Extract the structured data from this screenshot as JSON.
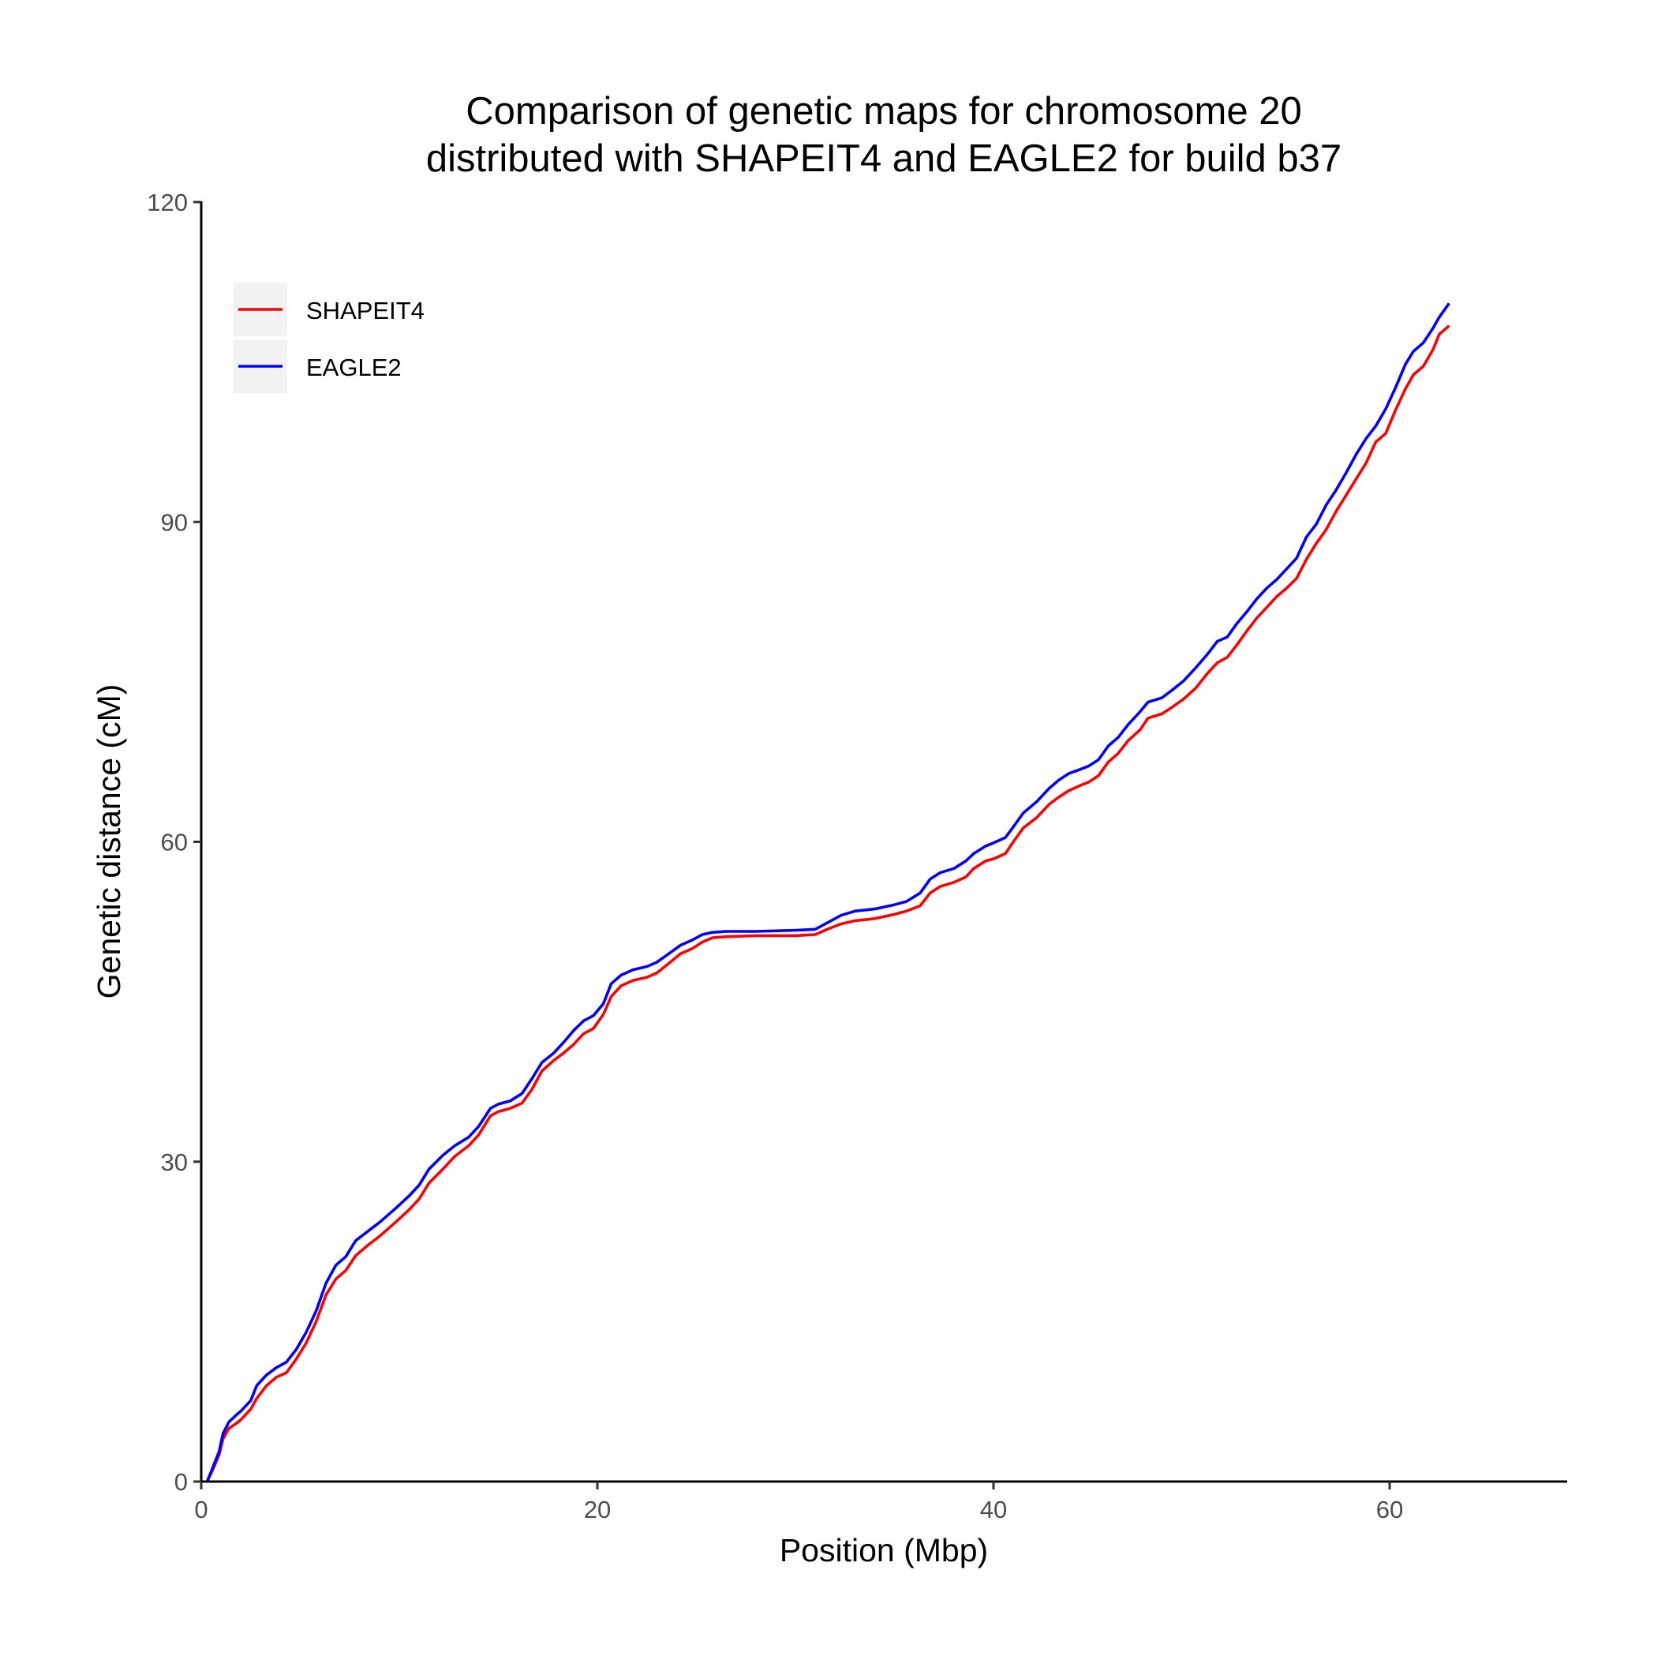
{
  "chart_data": {
    "type": "line",
    "title": "Comparison of genetic maps for chromosome 20 distributed with SHAPEIT4 and EAGLE2 for build b37",
    "title_lines": [
      "Comparison of genetic maps for chromosome 20",
      "distributed with SHAPEIT4 and EAGLE2 for build b37"
    ],
    "xlabel": "Position (Mbp)",
    "ylabel": "Genetic distance (cM)",
    "xlim": [
      0,
      70
    ],
    "ylim": [
      0,
      120
    ],
    "xticks": [
      0,
      20,
      40,
      60
    ],
    "yticks": [
      0,
      30,
      60,
      90,
      120
    ],
    "x_tick_labels": [
      "0",
      "20",
      "40",
      "60"
    ],
    "y_tick_labels": [
      "0",
      "30",
      "60",
      "90",
      "120"
    ],
    "grid": false,
    "legend_position": "top-left",
    "series": [
      {
        "name": "SHAPEIT4",
        "color": "#ff0000",
        "points": [
          [
            0.3,
            0.0
          ],
          [
            0.6,
            1.2
          ],
          [
            0.9,
            2.5
          ],
          [
            1.1,
            4.0
          ],
          [
            1.4,
            5.0
          ],
          [
            1.8,
            5.5
          ],
          [
            2.0,
            5.8
          ],
          [
            2.5,
            6.8
          ],
          [
            2.8,
            7.8
          ],
          [
            3.3,
            9.0
          ],
          [
            3.8,
            9.8
          ],
          [
            4.3,
            10.2
          ],
          [
            4.8,
            11.5
          ],
          [
            5.3,
            13.0
          ],
          [
            5.8,
            15.0
          ],
          [
            6.3,
            17.5
          ],
          [
            6.8,
            19.0
          ],
          [
            7.3,
            19.8
          ],
          [
            7.8,
            21.2
          ],
          [
            8.5,
            22.3
          ],
          [
            9.0,
            23.0
          ],
          [
            9.8,
            24.3
          ],
          [
            10.5,
            25.5
          ],
          [
            11.0,
            26.5
          ],
          [
            11.5,
            28.0
          ],
          [
            12.2,
            29.3
          ],
          [
            12.8,
            30.5
          ],
          [
            13.5,
            31.5
          ],
          [
            14.0,
            32.5
          ],
          [
            14.6,
            34.3
          ],
          [
            15.0,
            34.7
          ],
          [
            15.6,
            35.0
          ],
          [
            16.2,
            35.5
          ],
          [
            16.7,
            36.8
          ],
          [
            17.2,
            38.5
          ],
          [
            17.8,
            39.5
          ],
          [
            18.3,
            40.2
          ],
          [
            18.8,
            41.0
          ],
          [
            19.3,
            42.0
          ],
          [
            19.8,
            42.5
          ],
          [
            20.3,
            43.8
          ],
          [
            20.7,
            45.5
          ],
          [
            21.2,
            46.5
          ],
          [
            21.8,
            47.0
          ],
          [
            22.5,
            47.3
          ],
          [
            23.0,
            47.7
          ],
          [
            23.6,
            48.6
          ],
          [
            24.2,
            49.5
          ],
          [
            24.8,
            50.0
          ],
          [
            25.3,
            50.6
          ],
          [
            25.8,
            51.0
          ],
          [
            26.5,
            51.1
          ],
          [
            28.0,
            51.2
          ],
          [
            30.0,
            51.2
          ],
          [
            31.0,
            51.3
          ],
          [
            31.6,
            51.8
          ],
          [
            32.3,
            52.3
          ],
          [
            33.0,
            52.6
          ],
          [
            34.0,
            52.8
          ],
          [
            35.0,
            53.2
          ],
          [
            35.6,
            53.5
          ],
          [
            36.3,
            54.0
          ],
          [
            36.8,
            55.2
          ],
          [
            37.3,
            55.8
          ],
          [
            38.0,
            56.2
          ],
          [
            38.6,
            56.7
          ],
          [
            39.0,
            57.5
          ],
          [
            39.6,
            58.2
          ],
          [
            40.0,
            58.4
          ],
          [
            40.6,
            58.9
          ],
          [
            41.0,
            60.0
          ],
          [
            41.5,
            61.3
          ],
          [
            42.2,
            62.3
          ],
          [
            42.8,
            63.5
          ],
          [
            43.3,
            64.2
          ],
          [
            43.8,
            64.8
          ],
          [
            44.4,
            65.3
          ],
          [
            44.8,
            65.6
          ],
          [
            45.3,
            66.2
          ],
          [
            45.8,
            67.5
          ],
          [
            46.3,
            68.3
          ],
          [
            46.8,
            69.5
          ],
          [
            47.4,
            70.5
          ],
          [
            47.8,
            71.6
          ],
          [
            48.5,
            72.0
          ],
          [
            49.0,
            72.6
          ],
          [
            49.6,
            73.4
          ],
          [
            50.2,
            74.4
          ],
          [
            50.8,
            75.8
          ],
          [
            51.3,
            76.8
          ],
          [
            51.8,
            77.3
          ],
          [
            52.3,
            78.5
          ],
          [
            52.8,
            79.8
          ],
          [
            53.3,
            81.0
          ],
          [
            53.8,
            82.0
          ],
          [
            54.3,
            83.0
          ],
          [
            54.8,
            83.8
          ],
          [
            55.3,
            84.7
          ],
          [
            55.8,
            86.5
          ],
          [
            56.3,
            88.0
          ],
          [
            56.8,
            89.3
          ],
          [
            57.3,
            91.0
          ],
          [
            57.8,
            92.5
          ],
          [
            58.3,
            94.0
          ],
          [
            58.8,
            95.5
          ],
          [
            59.3,
            97.5
          ],
          [
            59.8,
            98.3
          ],
          [
            60.3,
            100.5
          ],
          [
            60.8,
            102.5
          ],
          [
            61.2,
            103.8
          ],
          [
            61.7,
            104.6
          ],
          [
            62.2,
            106.2
          ],
          [
            62.5,
            107.6
          ],
          [
            63.0,
            108.4
          ]
        ]
      },
      {
        "name": "EAGLE2",
        "color": "#0000ff",
        "points": [
          [
            0.3,
            0.0
          ],
          [
            0.6,
            1.4
          ],
          [
            0.9,
            2.8
          ],
          [
            1.1,
            4.5
          ],
          [
            1.4,
            5.6
          ],
          [
            1.8,
            6.3
          ],
          [
            2.0,
            6.6
          ],
          [
            2.5,
            7.6
          ],
          [
            2.8,
            9.0
          ],
          [
            3.3,
            10.0
          ],
          [
            3.8,
            10.7
          ],
          [
            4.3,
            11.2
          ],
          [
            4.8,
            12.4
          ],
          [
            5.3,
            14.0
          ],
          [
            5.8,
            16.0
          ],
          [
            6.3,
            18.6
          ],
          [
            6.8,
            20.3
          ],
          [
            7.3,
            21.1
          ],
          [
            7.8,
            22.6
          ],
          [
            8.5,
            23.6
          ],
          [
            9.0,
            24.3
          ],
          [
            9.8,
            25.6
          ],
          [
            10.5,
            26.8
          ],
          [
            11.0,
            27.8
          ],
          [
            11.5,
            29.3
          ],
          [
            12.2,
            30.6
          ],
          [
            12.8,
            31.5
          ],
          [
            13.5,
            32.3
          ],
          [
            14.0,
            33.3
          ],
          [
            14.6,
            35.0
          ],
          [
            15.0,
            35.4
          ],
          [
            15.6,
            35.7
          ],
          [
            16.2,
            36.4
          ],
          [
            16.7,
            37.8
          ],
          [
            17.2,
            39.3
          ],
          [
            17.8,
            40.2
          ],
          [
            18.3,
            41.2
          ],
          [
            18.8,
            42.3
          ],
          [
            19.3,
            43.2
          ],
          [
            19.8,
            43.7
          ],
          [
            20.3,
            44.8
          ],
          [
            20.7,
            46.7
          ],
          [
            21.2,
            47.5
          ],
          [
            21.8,
            48.0
          ],
          [
            22.5,
            48.3
          ],
          [
            23.0,
            48.7
          ],
          [
            23.6,
            49.5
          ],
          [
            24.2,
            50.3
          ],
          [
            24.8,
            50.8
          ],
          [
            25.3,
            51.3
          ],
          [
            25.8,
            51.5
          ],
          [
            26.5,
            51.6
          ],
          [
            28.0,
            51.6
          ],
          [
            30.0,
            51.7
          ],
          [
            31.0,
            51.8
          ],
          [
            31.6,
            52.4
          ],
          [
            32.3,
            53.1
          ],
          [
            33.0,
            53.5
          ],
          [
            34.0,
            53.7
          ],
          [
            35.0,
            54.1
          ],
          [
            35.6,
            54.4
          ],
          [
            36.3,
            55.2
          ],
          [
            36.8,
            56.5
          ],
          [
            37.3,
            57.1
          ],
          [
            38.0,
            57.5
          ],
          [
            38.6,
            58.2
          ],
          [
            39.0,
            58.9
          ],
          [
            39.6,
            59.6
          ],
          [
            40.0,
            59.9
          ],
          [
            40.6,
            60.4
          ],
          [
            41.0,
            61.4
          ],
          [
            41.5,
            62.7
          ],
          [
            42.2,
            63.8
          ],
          [
            42.8,
            65.0
          ],
          [
            43.3,
            65.8
          ],
          [
            43.8,
            66.4
          ],
          [
            44.4,
            66.8
          ],
          [
            44.8,
            67.1
          ],
          [
            45.3,
            67.7
          ],
          [
            45.8,
            69.0
          ],
          [
            46.3,
            69.8
          ],
          [
            46.8,
            71.0
          ],
          [
            47.4,
            72.2
          ],
          [
            47.8,
            73.1
          ],
          [
            48.5,
            73.5
          ],
          [
            49.0,
            74.2
          ],
          [
            49.6,
            75.1
          ],
          [
            50.2,
            76.3
          ],
          [
            50.8,
            77.6
          ],
          [
            51.3,
            78.8
          ],
          [
            51.8,
            79.2
          ],
          [
            52.3,
            80.5
          ],
          [
            52.8,
            81.6
          ],
          [
            53.3,
            82.8
          ],
          [
            53.8,
            83.8
          ],
          [
            54.3,
            84.6
          ],
          [
            54.8,
            85.6
          ],
          [
            55.3,
            86.6
          ],
          [
            55.8,
            88.6
          ],
          [
            56.3,
            89.8
          ],
          [
            56.8,
            91.6
          ],
          [
            57.3,
            93.0
          ],
          [
            57.8,
            94.6
          ],
          [
            58.3,
            96.3
          ],
          [
            58.8,
            97.8
          ],
          [
            59.3,
            99.0
          ],
          [
            59.8,
            100.6
          ],
          [
            60.3,
            102.6
          ],
          [
            60.8,
            104.8
          ],
          [
            61.2,
            106.0
          ],
          [
            61.7,
            106.8
          ],
          [
            62.2,
            108.2
          ],
          [
            62.5,
            109.2
          ],
          [
            63.0,
            110.5
          ]
        ]
      }
    ]
  }
}
